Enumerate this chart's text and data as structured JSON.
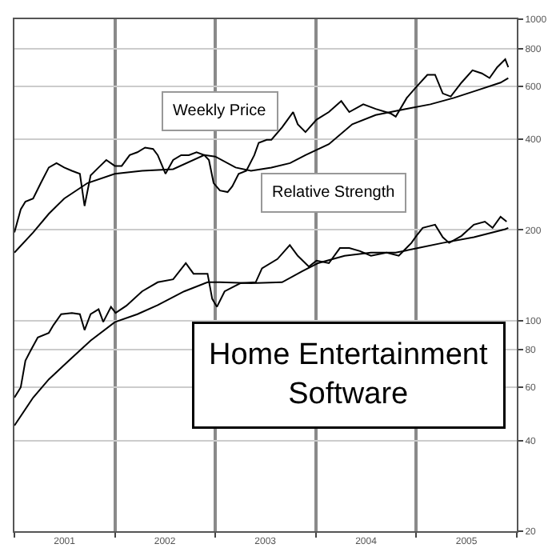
{
  "chart_data": {
    "type": "line",
    "title": "Home Entertainment Software",
    "annotations": [
      "Weekly Price",
      "Relative Strength"
    ],
    "log": "y",
    "grid": true,
    "marker": "none",
    "line_style": "solid",
    "xlim": [
      "2001-01-01",
      "2006-01-01"
    ],
    "xticks": [
      {
        "value": "2001-07-02",
        "label": "2001"
      },
      {
        "value": "2002-07-02",
        "label": "2002"
      },
      {
        "value": "2003-07-02",
        "label": "2003"
      },
      {
        "value": "2004-07-02",
        "label": "2004"
      },
      {
        "value": "2005-07-02",
        "label": "2005"
      }
    ],
    "ylim": [
      20,
      1000
    ],
    "yticks": [
      20,
      40,
      60,
      80,
      100,
      200,
      400,
      600,
      800,
      1000
    ],
    "series": [
      {
        "color": "#000000",
        "x": [
          "2001-01-01",
          "2001-01-24",
          "2001-02-10",
          "2001-03-10",
          "2001-04-07",
          "2001-05-06",
          "2001-06-03",
          "2001-07-01",
          "2001-07-29",
          "2001-08-27",
          "2001-09-13",
          "2001-10-05",
          "2001-11-03",
          "2001-12-01",
          "2002-01-01",
          "2002-01-26",
          "2002-02-24",
          "2002-03-24",
          "2002-04-21",
          "2002-05-20",
          "2002-06-06",
          "2002-07-04",
          "2002-08-01",
          "2002-08-30",
          "2002-09-27",
          "2002-10-25",
          "2002-11-22",
          "2002-12-09",
          "2002-12-26",
          "2003-01-18",
          "2003-02-15",
          "2003-03-04",
          "2003-03-27",
          "2003-04-24",
          "2003-05-23",
          "2003-06-08",
          "2003-07-07",
          "2003-07-24",
          "2003-09-01",
          "2003-10-11",
          "2003-10-28",
          "2003-11-25",
          "2004-01-04",
          "2004-02-18",
          "2004-04-03",
          "2004-05-02",
          "2004-06-22",
          "2004-08-06",
          "2004-10-01",
          "2004-10-18",
          "2004-11-27",
          "2004-12-26",
          "2005-02-10",
          "2005-03-10",
          "2005-04-07",
          "2005-05-06",
          "2005-06-14",
          "2005-07-24",
          "2005-08-27",
          "2005-09-24",
          "2005-10-22",
          "2005-11-20",
          "2005-12-01"
        ],
        "values": [
          196,
          234,
          248,
          254,
          286,
          322,
          333,
          322,
          314,
          307,
          240,
          303,
          322,
          341,
          326,
          326,
          354,
          362,
          375,
          371,
          354,
          307,
          341,
          354,
          354,
          362,
          354,
          341,
          286,
          270,
          267,
          279,
          307,
          314,
          354,
          389,
          398,
          398,
          438,
          492,
          448,
          422,
          464,
          492,
          535,
          492,
          522,
          504,
          486,
          475,
          548,
          588,
          654,
          654,
          567,
          554,
          616,
          677,
          661,
          638,
          693,
          736,
          693
        ]
      },
      {
        "color": "#000000",
        "x": [
          "2001-01-01",
          "2001-03-10",
          "2001-05-06",
          "2001-07-01",
          "2001-09-24",
          "2002-01-01",
          "2002-04-10",
          "2002-08-01",
          "2002-11-22",
          "2003-01-01",
          "2003-03-16",
          "2003-05-11",
          "2003-07-24",
          "2003-09-30",
          "2003-11-25",
          "2004-02-18",
          "2004-05-13",
          "2004-08-06",
          "2004-11-27",
          "2005-02-21",
          "2005-05-17",
          "2005-08-10",
          "2005-11-03",
          "2005-12-01"
        ],
        "values": [
          168,
          196,
          226,
          254,
          286,
          307,
          314,
          318,
          354,
          350,
          322,
          314,
          322,
          333,
          354,
          385,
          448,
          481,
          504,
          522,
          548,
          581,
          616,
          638
        ]
      },
      {
        "color": "#000000",
        "x": [
          "2001-01-01",
          "2001-01-24",
          "2001-02-10",
          "2001-02-27",
          "2001-03-27",
          "2001-05-06",
          "2001-05-23",
          "2001-06-20",
          "2001-07-29",
          "2001-08-27",
          "2001-09-13",
          "2001-10-05",
          "2001-11-03",
          "2001-11-20",
          "2001-12-18",
          "2002-01-04",
          "2002-02-12",
          "2002-04-10",
          "2002-06-06",
          "2002-08-01",
          "2002-09-16",
          "2002-10-14",
          "2002-12-04",
          "2002-12-21",
          "2003-01-07",
          "2003-02-04",
          "2003-04-02",
          "2003-05-28",
          "2003-06-20",
          "2003-08-15",
          "2003-09-29",
          "2003-10-28",
          "2003-12-07",
          "2004-01-04",
          "2004-02-18",
          "2004-03-29",
          "2004-05-02",
          "2004-06-10",
          "2004-07-20",
          "2004-09-15",
          "2004-10-29",
          "2004-12-14",
          "2005-01-01",
          "2005-01-24",
          "2005-03-10",
          "2005-04-07",
          "2005-04-30",
          "2005-06-14",
          "2005-07-29",
          "2005-09-07",
          "2005-10-05",
          "2005-11-03",
          "2005-11-25"
        ],
        "values": [
          55.5,
          60,
          73.6,
          78.9,
          87.9,
          91,
          96.6,
          105,
          106,
          105,
          93,
          105,
          109,
          99,
          111,
          106,
          112,
          125,
          134,
          137,
          155,
          143,
          143,
          118,
          111,
          125,
          133,
          134,
          149,
          160,
          178,
          164,
          151,
          158,
          155,
          174,
          174,
          170,
          164,
          168,
          164,
          181,
          191,
          203,
          208,
          189,
          181,
          191,
          208,
          213,
          203,
          221,
          213
        ]
      },
      {
        "color": "#000000",
        "x": [
          "2001-01-01",
          "2001-03-10",
          "2001-05-06",
          "2001-07-18",
          "2001-10-05",
          "2002-01-01",
          "2002-03-24",
          "2002-06-06",
          "2002-09-10",
          "2002-12-04",
          "2003-01-18",
          "2003-05-11",
          "2003-09-01",
          "2003-11-14",
          "2004-01-09",
          "2004-04-15",
          "2004-07-20",
          "2004-10-18",
          "2005-01-07",
          "2005-04-07",
          "2005-07-29",
          "2005-11-20",
          "2005-12-01"
        ],
        "values": [
          44.8,
          55.5,
          63.8,
          73.6,
          85.8,
          98.8,
          105,
          112.5,
          125,
          134,
          134,
          133,
          134,
          146,
          155,
          164,
          168,
          168,
          174,
          181,
          189,
          201,
          203
        ]
      }
    ]
  }
}
